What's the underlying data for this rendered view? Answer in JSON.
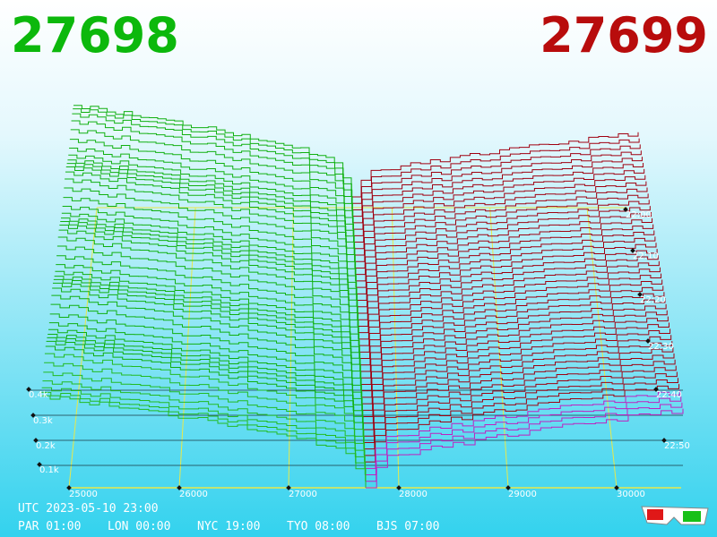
{
  "header": {
    "bid": "27698",
    "ask": "27699"
  },
  "price_axis": [
    "25000",
    "26000",
    "27000",
    "28000",
    "29000",
    "30000"
  ],
  "depth_axis": [
    "0.4k",
    "0.3k",
    "0.2k",
    "0.1k"
  ],
  "time_axis": [
    "22:00",
    "22:10",
    "22:20",
    "22:30",
    "22:40",
    "22:50"
  ],
  "footer": {
    "utc": "UTC 2023-05-10 23:00",
    "zones": [
      "PAR 01:00",
      "LON 00:00",
      "NYC 19:00",
      "TYO 08:00",
      "BJS 07:00"
    ]
  }
}
